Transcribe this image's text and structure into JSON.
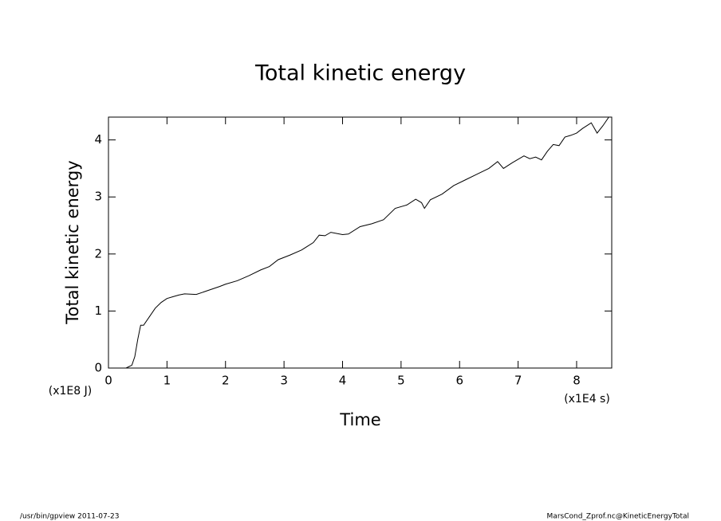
{
  "chart_data": {
    "type": "line",
    "title": "Total kinetic energy",
    "x_label": "Time",
    "y_label": "Total kinetic energy",
    "x_unit": "(x1E4 s)",
    "y_unit": "(x1E8 J)",
    "footer_left": "/usr/bin/gpview  2011-07-23",
    "footer_right": "MarsCond_Zprof.nc@KineticEnergyTotal",
    "xlim": [
      0,
      8.6
    ],
    "ylim": [
      0,
      4.4
    ],
    "xticks": [
      0,
      1,
      2,
      3,
      4,
      5,
      6,
      7,
      8
    ],
    "yticks": [
      0,
      1,
      2,
      3,
      4
    ],
    "color": "#000000",
    "x": [
      0.3,
      0.4,
      0.45,
      0.5,
      0.55,
      0.6,
      0.7,
      0.8,
      0.9,
      1.0,
      1.1,
      1.2,
      1.3,
      1.5,
      1.7,
      1.9,
      2.0,
      2.2,
      2.4,
      2.6,
      2.75,
      2.9,
      3.1,
      3.3,
      3.5,
      3.6,
      3.7,
      3.8,
      4.0,
      4.1,
      4.3,
      4.5,
      4.7,
      4.9,
      5.1,
      5.25,
      5.35,
      5.4,
      5.5,
      5.7,
      5.9,
      6.1,
      6.3,
      6.5,
      6.65,
      6.75,
      6.9,
      7.1,
      7.2,
      7.3,
      7.4,
      7.5,
      7.6,
      7.7,
      7.8,
      7.9,
      8.0,
      8.1,
      8.25,
      8.35,
      8.45,
      8.55
    ],
    "values": [
      0,
      0.05,
      0.2,
      0.5,
      0.75,
      0.75,
      0.9,
      1.05,
      1.15,
      1.22,
      1.25,
      1.28,
      1.3,
      1.29,
      1.36,
      1.43,
      1.47,
      1.53,
      1.62,
      1.72,
      1.78,
      1.9,
      1.98,
      2.07,
      2.2,
      2.33,
      2.32,
      2.38,
      2.34,
      2.35,
      2.48,
      2.53,
      2.6,
      2.8,
      2.86,
      2.96,
      2.9,
      2.8,
      2.95,
      3.05,
      3.2,
      3.3,
      3.4,
      3.5,
      3.62,
      3.5,
      3.6,
      3.72,
      3.67,
      3.7,
      3.65,
      3.8,
      3.92,
      3.9,
      4.05,
      4.08,
      4.12,
      4.2,
      4.3,
      4.12,
      4.25,
      4.4
    ]
  }
}
